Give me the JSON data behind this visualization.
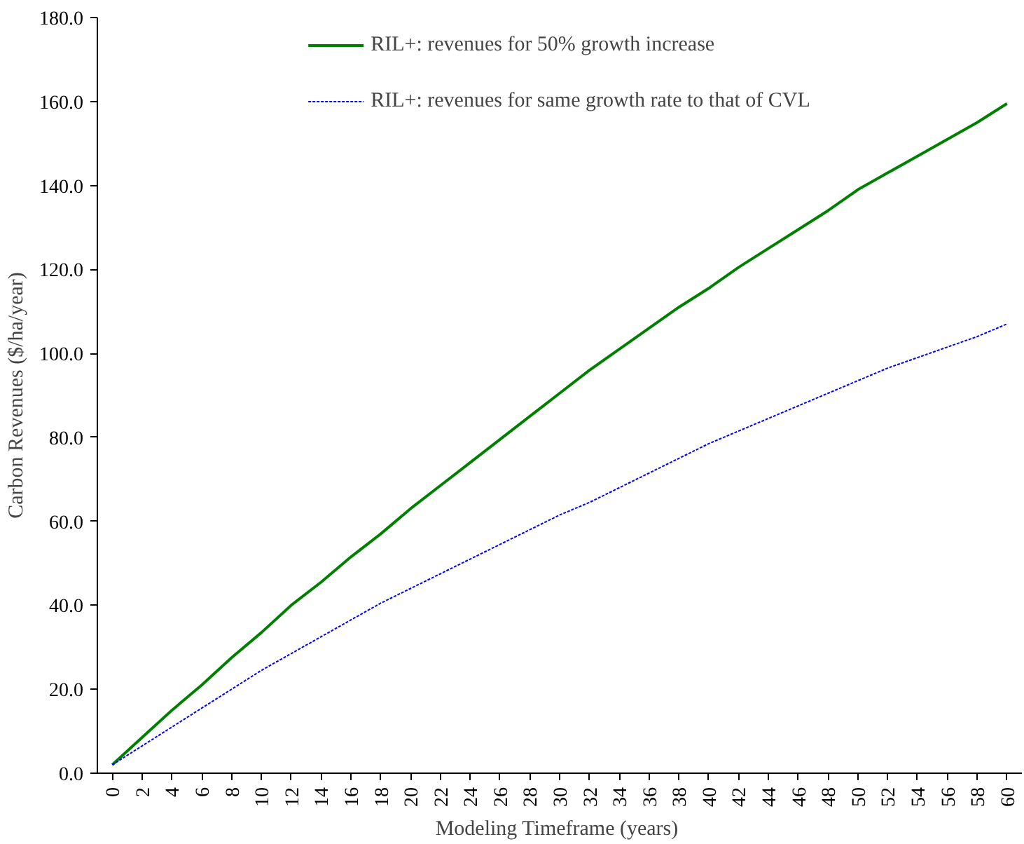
{
  "chart_data": {
    "type": "line",
    "xlabel": "Modeling Timeframe  (years)",
    "ylabel": "Carbon Revenues ($/ha/year)",
    "x": [
      0,
      2,
      4,
      6,
      8,
      10,
      12,
      14,
      16,
      18,
      20,
      22,
      24,
      26,
      28,
      30,
      32,
      34,
      36,
      38,
      40,
      42,
      44,
      46,
      48,
      50,
      52,
      54,
      56,
      58,
      60
    ],
    "series": [
      {
        "name": "RIL+: revenues for 50% growth increase",
        "color": "#008000",
        "line_style": "solid",
        "values": [
          2,
          8.5,
          15,
          21,
          27.5,
          33.5,
          40,
          45.5,
          51.5,
          57,
          63,
          68.5,
          74,
          79.5,
          85,
          90.5,
          96,
          101,
          106,
          111,
          115.5,
          120.5,
          125,
          129.5,
          134,
          139,
          143,
          147,
          151,
          155,
          159.5
        ]
      },
      {
        "name": "RIL+: revenues for same growth rate to that of CVL",
        "color": "#0000ff",
        "line_style": "dotted",
        "values": [
          2,
          6.5,
          11,
          15.5,
          20,
          24.5,
          28.5,
          32.5,
          36.5,
          40.5,
          44,
          47.5,
          51,
          54.5,
          58,
          61.5,
          64.5,
          68,
          71.5,
          75,
          78.5,
          81.5,
          84.5,
          87.5,
          90.5,
          93.5,
          96.5,
          99,
          101.5,
          104,
          107
        ]
      }
    ],
    "xlim": [
      -1,
      61
    ],
    "xticks": [
      0,
      2,
      4,
      6,
      8,
      10,
      12,
      14,
      16,
      18,
      20,
      22,
      24,
      26,
      28,
      30,
      32,
      34,
      36,
      38,
      40,
      42,
      44,
      46,
      48,
      50,
      52,
      54,
      56,
      58,
      60
    ],
    "ylim": [
      0,
      180
    ],
    "yticks": [
      {
        "value": 0,
        "label": "0.0"
      },
      {
        "value": 20,
        "label": "20.0"
      },
      {
        "value": 40,
        "label": "40.0"
      },
      {
        "value": 60,
        "label": "60.0"
      },
      {
        "value": 80,
        "label": "80.0"
      },
      {
        "value": 100,
        "label": "100.0"
      },
      {
        "value": 120,
        "label": "120.0"
      },
      {
        "value": 140,
        "label": "140.0"
      },
      {
        "value": 160,
        "label": "160.0"
      },
      {
        "value": 180,
        "label": "180.0"
      }
    ],
    "grid": false,
    "legend": "top",
    "marker": "none"
  }
}
